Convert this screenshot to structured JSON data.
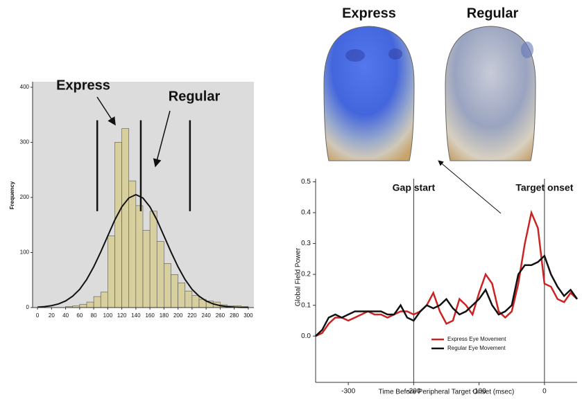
{
  "chart_data": [
    {
      "type": "histogram",
      "ylabel": "Frequency",
      "bins": [
        40,
        50,
        60,
        70,
        80,
        90,
        100,
        110,
        120,
        130,
        140,
        150,
        160,
        170,
        180,
        190,
        200,
        210,
        220,
        230,
        240,
        250,
        260,
        270,
        280,
        290,
        300
      ],
      "counts": [
        2,
        3,
        6,
        10,
        20,
        28,
        130,
        300,
        325,
        230,
        185,
        140,
        175,
        120,
        80,
        60,
        45,
        30,
        22,
        15,
        12,
        10,
        5,
        3,
        3,
        2
      ],
      "color": "#d8cf9e",
      "curve": {
        "x": [
          0,
          10,
          20,
          30,
          40,
          50,
          60,
          70,
          80,
          90,
          100,
          110,
          120,
          130,
          140,
          150,
          160,
          170,
          180,
          190,
          200,
          210,
          220,
          230,
          240,
          250,
          260,
          270,
          280,
          290,
          300
        ],
        "y": [
          0.8,
          1.7,
          3.5,
          6.7,
          12,
          20.6,
          33,
          51,
          74,
          101,
          130,
          159,
          183,
          199,
          205,
          199,
          183,
          159,
          130,
          101,
          74,
          51,
          33,
          20.6,
          12,
          6.7,
          3.5,
          1.7,
          0.8,
          0.3,
          0.2
        ]
      },
      "vlines": [
        85,
        147,
        217
      ],
      "vline_range": [
        175,
        340
      ],
      "annotations": [
        "Express",
        "Regular"
      ],
      "xlim": [
        -7,
        308
      ],
      "ylim": [
        0,
        410
      ],
      "xticks": [
        0,
        20,
        40,
        60,
        80,
        100,
        120,
        140,
        160,
        180,
        200,
        220,
        240,
        260,
        280,
        300
      ],
      "yticks": [
        0,
        100,
        200,
        300,
        400
      ]
    },
    {
      "type": "line",
      "xlabel": "Time Before Peripheral Target Onset (msec)",
      "ylabel": "Global Field Power",
      "x": [
        -350,
        -340,
        -330,
        -320,
        -310,
        -300,
        -290,
        -280,
        -270,
        -260,
        -250,
        -240,
        -230,
        -220,
        -210,
        -200,
        -190,
        -180,
        -170,
        -160,
        -150,
        -140,
        -130,
        -120,
        -110,
        -100,
        -90,
        -80,
        -70,
        -60,
        -50,
        -40,
        -30,
        -20,
        -10,
        0,
        10,
        20,
        30,
        40,
        50
      ],
      "series": [
        {
          "name": "Express Eye Movement",
          "color": "#cc2222",
          "values": [
            0.0,
            0.01,
            0.04,
            0.06,
            0.06,
            0.05,
            0.06,
            0.07,
            0.08,
            0.07,
            0.07,
            0.06,
            0.07,
            0.08,
            0.08,
            0.07,
            0.08,
            0.1,
            0.14,
            0.08,
            0.04,
            0.05,
            0.12,
            0.1,
            0.07,
            0.14,
            0.2,
            0.17,
            0.08,
            0.06,
            0.08,
            0.17,
            0.3,
            0.4,
            0.35,
            0.17,
            0.16,
            0.12,
            0.11,
            0.14,
            0.12
          ]
        },
        {
          "name": "Regular Eye Movement",
          "color": "#111111",
          "values": [
            0.0,
            0.02,
            0.06,
            0.07,
            0.06,
            0.07,
            0.08,
            0.08,
            0.08,
            0.08,
            0.08,
            0.07,
            0.07,
            0.1,
            0.06,
            0.05,
            0.08,
            0.1,
            0.09,
            0.1,
            0.12,
            0.09,
            0.07,
            0.08,
            0.1,
            0.12,
            0.15,
            0.1,
            0.07,
            0.08,
            0.1,
            0.2,
            0.23,
            0.23,
            0.24,
            0.26,
            0.2,
            0.16,
            0.13,
            0.15,
            0.12
          ]
        }
      ],
      "vlines": [
        {
          "x": -200,
          "label": "Gap start"
        },
        {
          "x": 0,
          "label": "Target onset"
        }
      ],
      "xlim": [
        -350,
        50
      ],
      "ylim": [
        -0.15,
        0.51
      ],
      "xticks": [
        -300,
        -200,
        -100,
        0
      ],
      "yticks": [
        {
          "value": 0,
          "label": "0.0"
        },
        0.1,
        0.2,
        0.3,
        0.4,
        0.5
      ]
    }
  ],
  "head_maps": {
    "labels": [
      "Express",
      "Regular"
    ]
  }
}
